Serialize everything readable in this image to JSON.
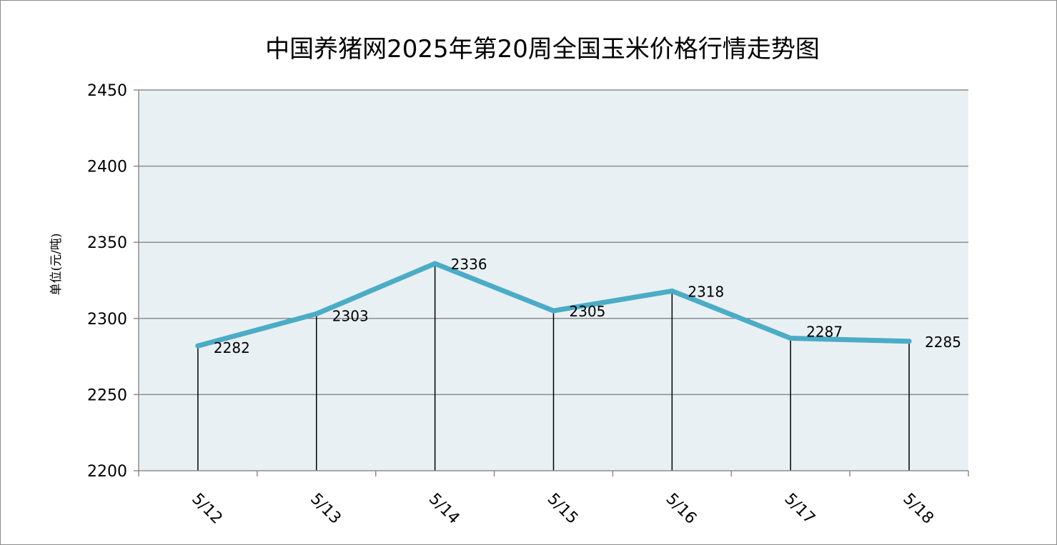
{
  "chart_data": {
    "type": "line",
    "title": "中国养猪网2025年第20周全国玉米价格行情走势图",
    "xlabel": "",
    "ylabel": "单位(元/吨)",
    "categories": [
      "5/12",
      "5/13",
      "5/14",
      "5/15",
      "5/16",
      "5/17",
      "5/18"
    ],
    "values": [
      2282,
      2303,
      2336,
      2305,
      2318,
      2287,
      2285
    ],
    "data_labels": [
      "2282",
      "2303",
      "2336",
      "2305",
      "2318",
      "2287",
      "2285"
    ],
    "ylim": [
      2200,
      2450
    ],
    "yticks": [
      2200,
      2250,
      2300,
      2350,
      2400,
      2450
    ],
    "grid": true,
    "drop_lines": true,
    "legend": "none",
    "colors": {
      "line": "#4bacc6",
      "plot_background": "#e9f0f4",
      "grid": "#8c8c8c",
      "drop_line": "#000000"
    }
  }
}
